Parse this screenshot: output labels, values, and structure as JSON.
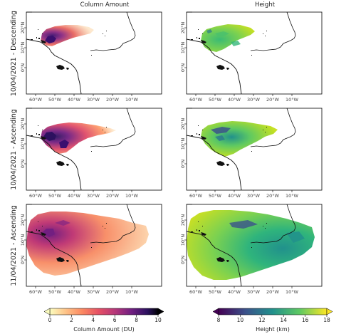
{
  "columns": [
    "Column Amount",
    "Height"
  ],
  "rows": [
    "10/04/2021 - Descending",
    "10/04/2021 - Ascending",
    "11/04/2021 - Ascending"
  ],
  "lon_ticks": [
    "60°W",
    "50°W",
    "40°W",
    "30°W",
    "20°W",
    "10°W"
  ],
  "lat_ticks": [
    "20°N",
    "10°N",
    "0°N"
  ],
  "colorbars": [
    {
      "label": "Column Amount (DU)",
      "ticks": [
        "0",
        "2",
        "4",
        "6",
        "8",
        "10"
      ],
      "range": [
        0,
        10
      ],
      "colormap": "magma_r",
      "colors": [
        "#fcfdbf",
        "#fec287",
        "#fb8861",
        "#e55064",
        "#b73779",
        "#721f81",
        "#2c115f",
        "#000004"
      ]
    },
    {
      "label": "Height (km)",
      "ticks": [
        "8",
        "10",
        "12",
        "14",
        "16",
        "18"
      ],
      "range": [
        8,
        18
      ],
      "colormap": "viridis",
      "colors": [
        "#440154",
        "#3b528b",
        "#21918c",
        "#5ec962",
        "#fde725"
      ]
    }
  ],
  "colors": {
    "coastline": "#111111",
    "frame": "#000000",
    "tick_text": "#444444"
  }
}
